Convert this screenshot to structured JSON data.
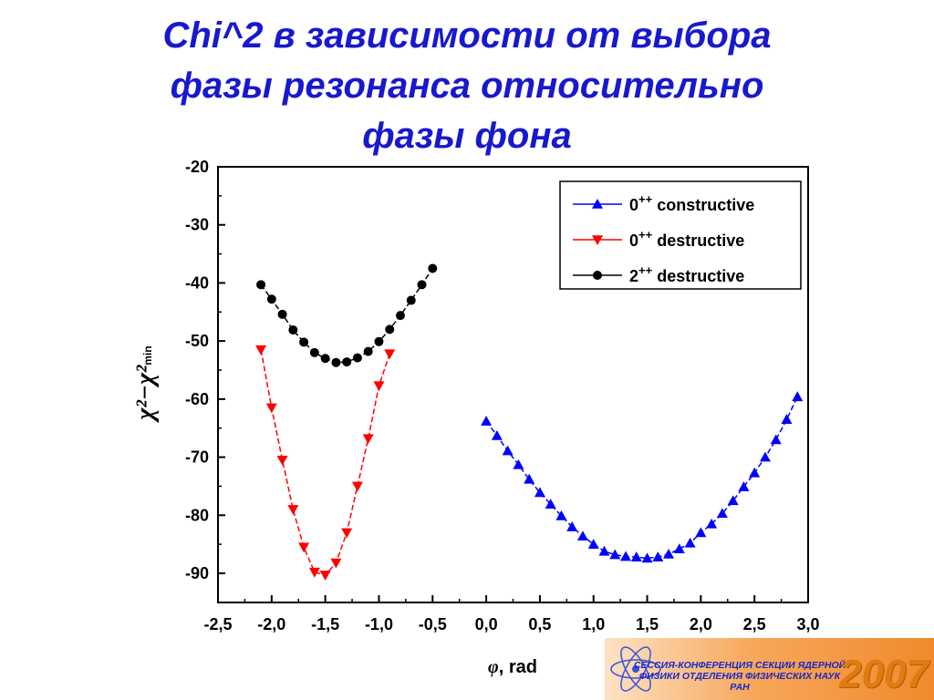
{
  "title": {
    "line1": "Chi^2 в зависимости от выбора",
    "line2": "фазы резонанса относительно",
    "line3": "фазы фона"
  },
  "colors": {
    "title": "#1818d0",
    "constructive": "#0000ff",
    "destructive_0": "#ff0000",
    "destructive_2": "#000000"
  },
  "chart_data": {
    "type": "scatter",
    "xlabel": "φ, rad",
    "ylabel": "χ²−χ²min",
    "xlim": [
      -2.5,
      3.0
    ],
    "ylim": [
      -95,
      -20
    ],
    "xticks": [
      "-2,5",
      "-2,0",
      "-1,5",
      "-1,0",
      "-0,5",
      "0,0",
      "0,5",
      "1,0",
      "1,5",
      "2,0",
      "2,5",
      "3,0"
    ],
    "xtick_values": [
      -2.5,
      -2.0,
      -1.5,
      -1.0,
      -0.5,
      0.0,
      0.5,
      1.0,
      1.5,
      2.0,
      2.5,
      3.0
    ],
    "yticks": [
      "-20",
      "-30",
      "-40",
      "-50",
      "-60",
      "-70",
      "-80",
      "-90"
    ],
    "ytick_values": [
      -20,
      -30,
      -40,
      -50,
      -60,
      -70,
      -80,
      -90
    ],
    "legend_position": "top-right",
    "grid": false,
    "series": [
      {
        "name": "0++ constructive",
        "legend_base": "0",
        "legend_sup": "++",
        "legend_rest": " constructive",
        "color": "#0000ff",
        "marker": "triangle-up",
        "x": [
          0.0,
          0.1,
          0.2,
          0.3,
          0.4,
          0.5,
          0.6,
          0.7,
          0.8,
          0.9,
          1.0,
          1.1,
          1.2,
          1.3,
          1.4,
          1.5,
          1.6,
          1.7,
          1.8,
          1.9,
          2.0,
          2.1,
          2.2,
          2.3,
          2.4,
          2.5,
          2.6,
          2.7,
          2.8,
          2.9
        ],
        "y": [
          -63.8,
          -66.3,
          -68.9,
          -71.3,
          -73.8,
          -76.1,
          -78.1,
          -80.1,
          -82.0,
          -83.6,
          -85.0,
          -86.2,
          -86.8,
          -87.1,
          -87.2,
          -87.4,
          -87.2,
          -86.7,
          -85.8,
          -84.8,
          -83.0,
          -81.5,
          -79.7,
          -77.5,
          -75.1,
          -72.7,
          -70.0,
          -67.0,
          -63.5,
          -59.6
        ]
      },
      {
        "name": "0++ destructive",
        "legend_base": "0",
        "legend_sup": "++",
        "legend_rest": " destructive",
        "color": "#ff0000",
        "marker": "triangle-down",
        "x": [
          -2.1,
          -2.0,
          -1.9,
          -1.8,
          -1.7,
          -1.6,
          -1.5,
          -1.4,
          -1.3,
          -1.2,
          -1.1,
          -1.0,
          -0.9
        ],
        "y": [
          -51.5,
          -61.5,
          -70.5,
          -79.0,
          -85.5,
          -89.8,
          -90.3,
          -88.2,
          -83.0,
          -75.0,
          -66.8,
          -57.7,
          -52.2
        ]
      },
      {
        "name": "2++ destructive",
        "legend_base": "2",
        "legend_sup": "++",
        "legend_rest": " destructive",
        "color": "#000000",
        "marker": "circle",
        "x": [
          -2.1,
          -2.0,
          -1.9,
          -1.8,
          -1.7,
          -1.6,
          -1.5,
          -1.4,
          -1.3,
          -1.2,
          -1.1,
          -1.0,
          -0.9,
          -0.8,
          -0.7,
          -0.6,
          -0.5
        ],
        "y": [
          -40.3,
          -42.8,
          -45.4,
          -48.1,
          -50.2,
          -52.0,
          -53.0,
          -53.7,
          -53.6,
          -52.9,
          -51.8,
          -50.1,
          -48.0,
          -45.6,
          -43.0,
          -40.3,
          -37.5
        ]
      }
    ]
  },
  "conference_logo": {
    "line1": "СЕССИЯ-КОНФЕРЕНЦИЯ СЕКЦИИ ЯДЕРНОЙ",
    "line2": "ФИЗИКИ ОТДЕЛЕНИЯ ФИЗИЧЕСКИХ НАУК",
    "line3": "РАН",
    "year": "2007"
  }
}
